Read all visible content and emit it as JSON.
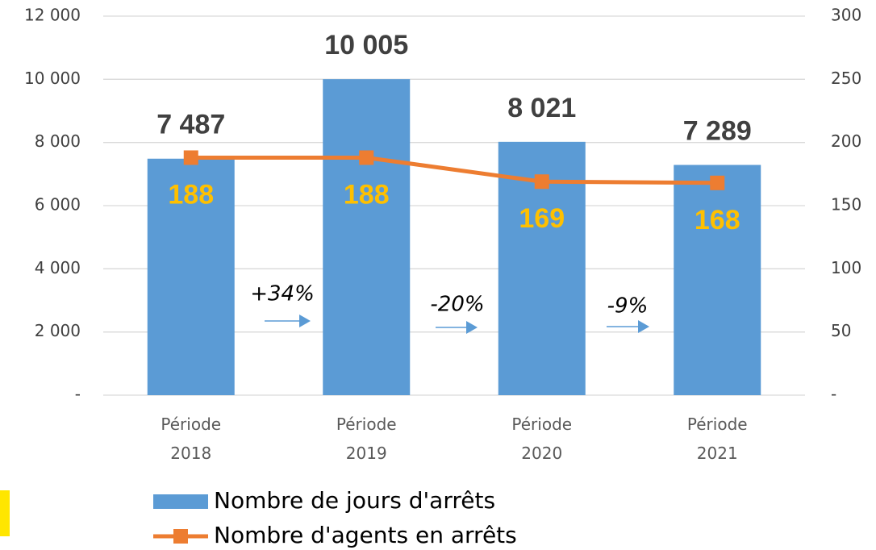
{
  "chart_data": {
    "type": "bar-line",
    "categories": [
      "Période 2018",
      "Période 2019",
      "Période 2020",
      "Période 2021"
    ],
    "series": [
      {
        "name": "Nombre de jours d'arrêts",
        "type": "bar",
        "color": "#5b9bd5",
        "values": [
          7487,
          10005,
          8021,
          7289
        ],
        "value_labels": [
          "7 487",
          "10 005",
          "8 021",
          "7 289"
        ]
      },
      {
        "name": "Nombre d'agents en arrêts",
        "type": "line",
        "axis": "y2",
        "color": "#ed7d31",
        "label_color": "#ffc000",
        "values": [
          188,
          188,
          169,
          168
        ]
      }
    ],
    "ylim": [
      0,
      12000
    ],
    "yticks": [
      {
        "value": 0,
        "label": "-"
      },
      {
        "value": 2000,
        "label": "2 000"
      },
      {
        "value": 4000,
        "label": "4 000"
      },
      {
        "value": 6000,
        "label": "6 000"
      },
      {
        "value": 8000,
        "label": "8 000"
      },
      {
        "value": 10000,
        "label": "10 000"
      },
      {
        "value": 12000,
        "label": "12 000"
      }
    ],
    "y2lim": [
      0,
      300
    ],
    "y2ticks": [
      {
        "value": 0,
        "label": "-"
      },
      50,
      100,
      150,
      200,
      250,
      300
    ],
    "annotations": [
      "+34%",
      "-20%",
      "-9%"
    ],
    "grid": true,
    "legend": "bottom"
  }
}
